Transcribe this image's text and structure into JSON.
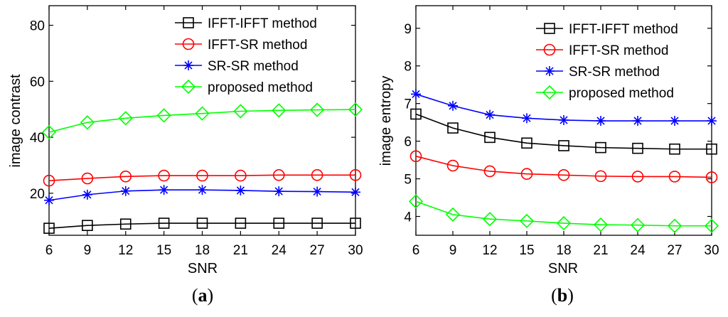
{
  "chart_data": [
    {
      "type": "line",
      "x": [
        6,
        9,
        12,
        15,
        18,
        21,
        24,
        27,
        30
      ],
      "xlabel": "SNR",
      "ylabel": "image contrast",
      "xlim": [
        6,
        30
      ],
      "ylim": [
        5,
        87
      ],
      "yticks": [
        20,
        40,
        60,
        80
      ],
      "grid": false,
      "legend_position": "top-right",
      "caption": {
        "open": "(",
        "letter": "a",
        "close": ")"
      },
      "series": [
        {
          "name": "IFFT-IFFT method",
          "color": "#000000",
          "marker": "square",
          "values": [
            7.5,
            8.5,
            9.0,
            9.3,
            9.3,
            9.3,
            9.3,
            9.3,
            9.3
          ]
        },
        {
          "name": "IFFT-SR method",
          "color": "#ff0000",
          "marker": "circle",
          "values": [
            24.5,
            25.3,
            26.0,
            26.3,
            26.3,
            26.3,
            26.5,
            26.5,
            26.5
          ]
        },
        {
          "name": "SR-SR method",
          "color": "#0000ff",
          "marker": "star",
          "values": [
            17.5,
            19.5,
            20.8,
            21.2,
            21.2,
            21.0,
            20.7,
            20.6,
            20.4
          ]
        },
        {
          "name": "proposed method",
          "color": "#00ff00",
          "marker": "diamond",
          "values": [
            41.8,
            45.3,
            46.8,
            47.8,
            48.5,
            49.3,
            49.6,
            49.8,
            49.9
          ]
        }
      ]
    },
    {
      "type": "line",
      "x": [
        6,
        9,
        12,
        15,
        18,
        21,
        24,
        27,
        30
      ],
      "xlabel": "SNR",
      "ylabel": "image entropy",
      "xlim": [
        6,
        30
      ],
      "ylim": [
        3.5,
        9.6
      ],
      "yticks": [
        4,
        5,
        6,
        7,
        8,
        9
      ],
      "grid": false,
      "legend_position": "top-right",
      "caption": {
        "open": "(",
        "letter": "b",
        "close": ")"
      },
      "series": [
        {
          "name": "IFFT-IFFT method",
          "color": "#000000",
          "marker": "square",
          "values": [
            6.72,
            6.35,
            6.1,
            5.95,
            5.88,
            5.83,
            5.81,
            5.79,
            5.79
          ]
        },
        {
          "name": "IFFT-SR method",
          "color": "#ff0000",
          "marker": "circle",
          "values": [
            5.6,
            5.35,
            5.2,
            5.13,
            5.1,
            5.07,
            5.06,
            5.06,
            5.04
          ]
        },
        {
          "name": "SR-SR method",
          "color": "#0000ff",
          "marker": "star",
          "values": [
            7.25,
            6.94,
            6.7,
            6.61,
            6.56,
            6.54,
            6.54,
            6.54,
            6.54
          ]
        },
        {
          "name": "proposed method",
          "color": "#00ff00",
          "marker": "diamond",
          "values": [
            4.4,
            4.05,
            3.93,
            3.88,
            3.82,
            3.78,
            3.77,
            3.75,
            3.75
          ]
        }
      ]
    }
  ]
}
